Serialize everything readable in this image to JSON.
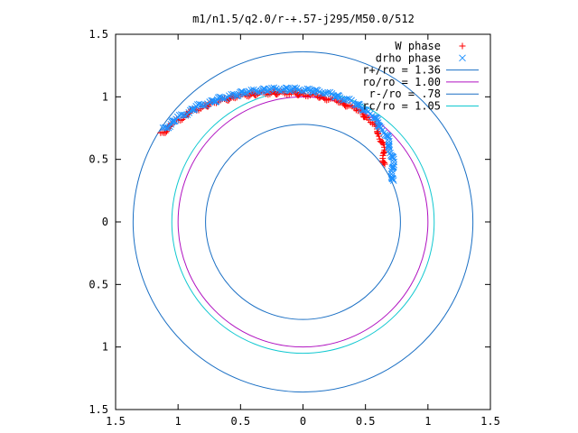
{
  "chart_data": {
    "type": "scatter",
    "title": "m1/n1.5/q2.0/r-+.57-j295/M50.0/512",
    "xlabel": "",
    "ylabel": "",
    "xlim": [
      -1.5,
      1.5
    ],
    "ylim": [
      -1.5,
      1.5
    ],
    "x_tick_values": [
      -1.5,
      -1,
      -0.5,
      0,
      0.5,
      1,
      1.5
    ],
    "x_tick_labels": [
      "1.5",
      "1",
      "0.5",
      "0",
      "0.5",
      "1",
      "1.5"
    ],
    "y_tick_values": [
      1.5,
      1,
      0.5,
      0,
      -0.5,
      -1,
      -1.5
    ],
    "y_tick_labels": [
      "1.5",
      "1",
      "0.5",
      "0",
      "0.5",
      "1",
      "1.5"
    ],
    "grid": false,
    "legend_position": "top-right",
    "series": [
      {
        "name": "W phase",
        "kind": "points",
        "marker": "+",
        "color": "#ff0000",
        "path": [
          [
            -1.14,
            0.7
          ],
          [
            -1.05,
            0.78
          ],
          [
            -0.9,
            0.88
          ],
          [
            -0.7,
            0.96
          ],
          [
            -0.5,
            1.01
          ],
          [
            -0.3,
            1.03
          ],
          [
            -0.1,
            1.03
          ],
          [
            0.1,
            1.01
          ],
          [
            0.3,
            0.96
          ],
          [
            0.45,
            0.89
          ],
          [
            0.56,
            0.79
          ],
          [
            0.62,
            0.68
          ],
          [
            0.65,
            0.55
          ],
          [
            0.65,
            0.45
          ]
        ],
        "point_count": 180
      },
      {
        "name": "drho phase",
        "kind": "points",
        "marker": "x",
        "color": "#1e90ff",
        "path": [
          [
            -1.12,
            0.74
          ],
          [
            -1.0,
            0.83
          ],
          [
            -0.85,
            0.92
          ],
          [
            -0.65,
            0.99
          ],
          [
            -0.45,
            1.04
          ],
          [
            -0.25,
            1.06
          ],
          [
            -0.05,
            1.06
          ],
          [
            0.15,
            1.04
          ],
          [
            0.35,
            0.98
          ],
          [
            0.5,
            0.9
          ],
          [
            0.6,
            0.8
          ],
          [
            0.67,
            0.68
          ],
          [
            0.71,
            0.55
          ],
          [
            0.72,
            0.42
          ],
          [
            0.72,
            0.32
          ]
        ],
        "point_count": 180
      },
      {
        "name": "r+/ro = 1.36",
        "kind": "circle",
        "radius": 1.36,
        "color": "#1a6fc4"
      },
      {
        "name": "ro/ro = 1.00",
        "kind": "circle",
        "radius": 1.0,
        "color": "#b010c0"
      },
      {
        "name": "r-/ro = .78",
        "kind": "circle",
        "radius": 0.78,
        "color": "#1a6fc4"
      },
      {
        "name": "rc/ro = 1.05",
        "kind": "circle",
        "radius": 1.05,
        "color": "#10c8d0"
      }
    ]
  }
}
